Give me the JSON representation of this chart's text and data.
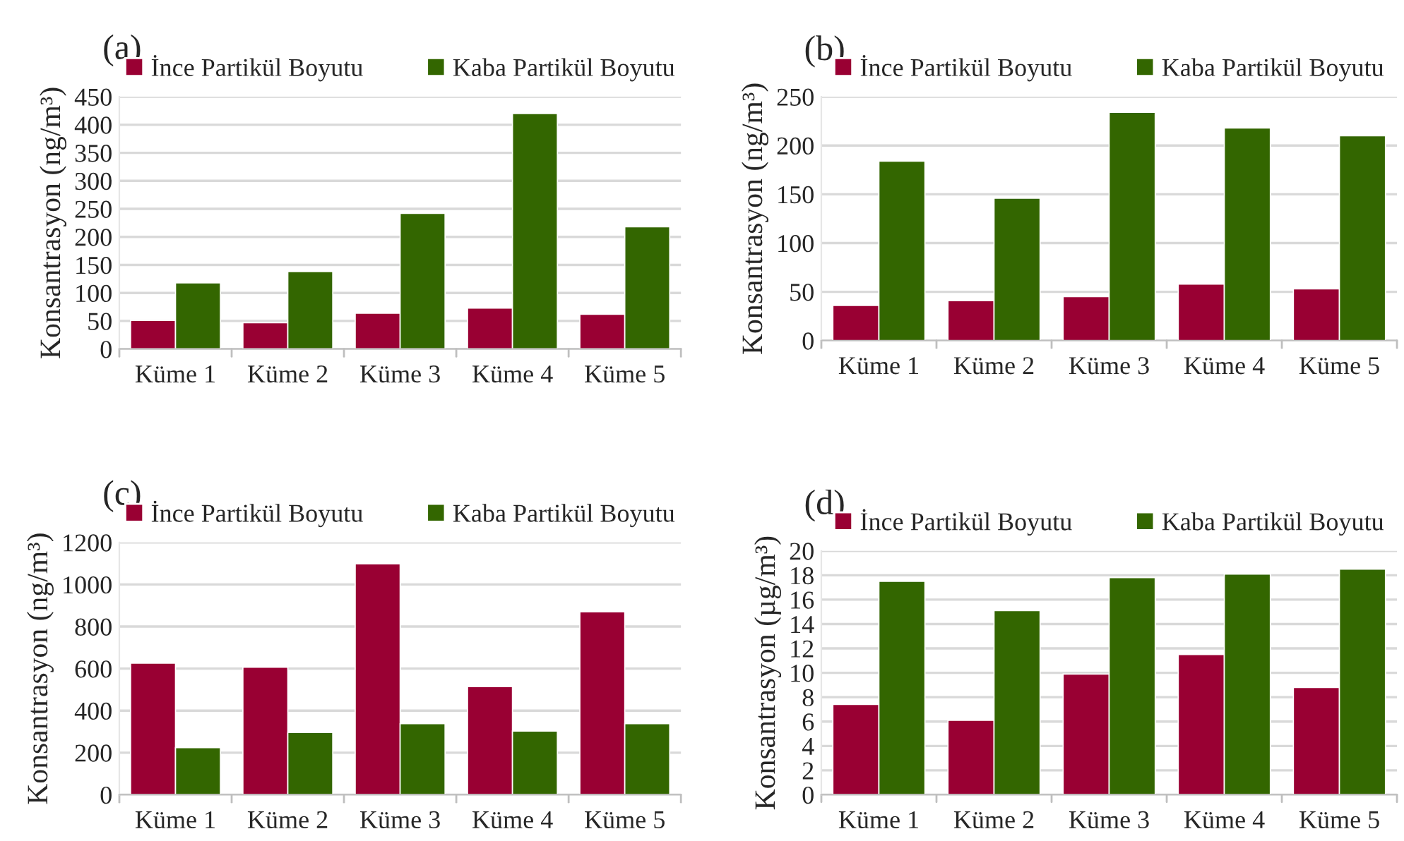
{
  "chart_data": [
    {
      "type": "bar",
      "title": "(a)",
      "ylabel": "Konsantrasyon (ng/m³)",
      "categories": [
        "Küme 1",
        "Küme 2",
        "Küme 3",
        "Küme 4",
        "Küme 5"
      ],
      "series": [
        {
          "name": "İnce Partikül Boyutu",
          "color": "#990033",
          "values": [
            51,
            47,
            64,
            73,
            62
          ]
        },
        {
          "name": "Kaba Partikül Boyutu",
          "color": "#336600",
          "values": [
            118,
            138,
            242,
            420,
            218
          ]
        }
      ],
      "ylim": [
        0,
        450
      ],
      "yticks": [
        0,
        50,
        100,
        150,
        200,
        250,
        300,
        350,
        400,
        450
      ],
      "grid": "y",
      "legend": "top"
    },
    {
      "type": "bar",
      "title": "(b)",
      "ylabel": "Konsantrasyon (ng/m³)",
      "categories": [
        "Küme 1",
        "Küme 2",
        "Küme 3",
        "Küme 4",
        "Küme 5"
      ],
      "series": [
        {
          "name": "İnce Partikül Boyutu",
          "color": "#990033",
          "values": [
            36,
            41,
            45,
            58,
            53
          ]
        },
        {
          "name": "Kaba Partikül Boyutu",
          "color": "#336600",
          "values": [
            184,
            146,
            234,
            218,
            210
          ]
        }
      ],
      "ylim": [
        0,
        250
      ],
      "yticks": [
        0,
        50,
        100,
        150,
        200,
        250
      ],
      "grid": "y",
      "legend": "top"
    },
    {
      "type": "bar",
      "title": "(c)",
      "ylabel": "Konsantrasyon (ng/m³)",
      "categories": [
        "Küme 1",
        "Küme 2",
        "Küme 3",
        "Küme 4",
        "Küme 5"
      ],
      "series": [
        {
          "name": "İnce Partikül Boyutu",
          "color": "#990033",
          "values": [
            626,
            607,
            1098,
            514,
            870
          ]
        },
        {
          "name": "Kaba Partikül Boyutu",
          "color": "#336600",
          "values": [
            224,
            296,
            338,
            303,
            338
          ]
        }
      ],
      "ylim": [
        0,
        1200
      ],
      "yticks": [
        0,
        200,
        400,
        600,
        800,
        1000,
        1200
      ],
      "grid": "y",
      "legend": "top"
    },
    {
      "type": "bar",
      "title": "(d)",
      "ylabel": "Konsantrasyon (µg/m³)",
      "categories": [
        "Küme 1",
        "Küme 2",
        "Küme 3",
        "Küme 4",
        "Küme 5"
      ],
      "series": [
        {
          "name": "İnce Partikül Boyutu",
          "color": "#990033",
          "values": [
            7.4,
            6.1,
            9.9,
            11.5,
            8.8
          ]
        },
        {
          "name": "Kaba Partikül Boyutu",
          "color": "#336600",
          "values": [
            17.5,
            15.1,
            17.8,
            18.1,
            18.5
          ]
        }
      ],
      "ylim": [
        0,
        20
      ],
      "yticks": [
        0,
        2,
        4,
        6,
        8,
        10,
        12,
        14,
        16,
        18,
        20
      ],
      "grid": "y",
      "legend": "top"
    }
  ]
}
